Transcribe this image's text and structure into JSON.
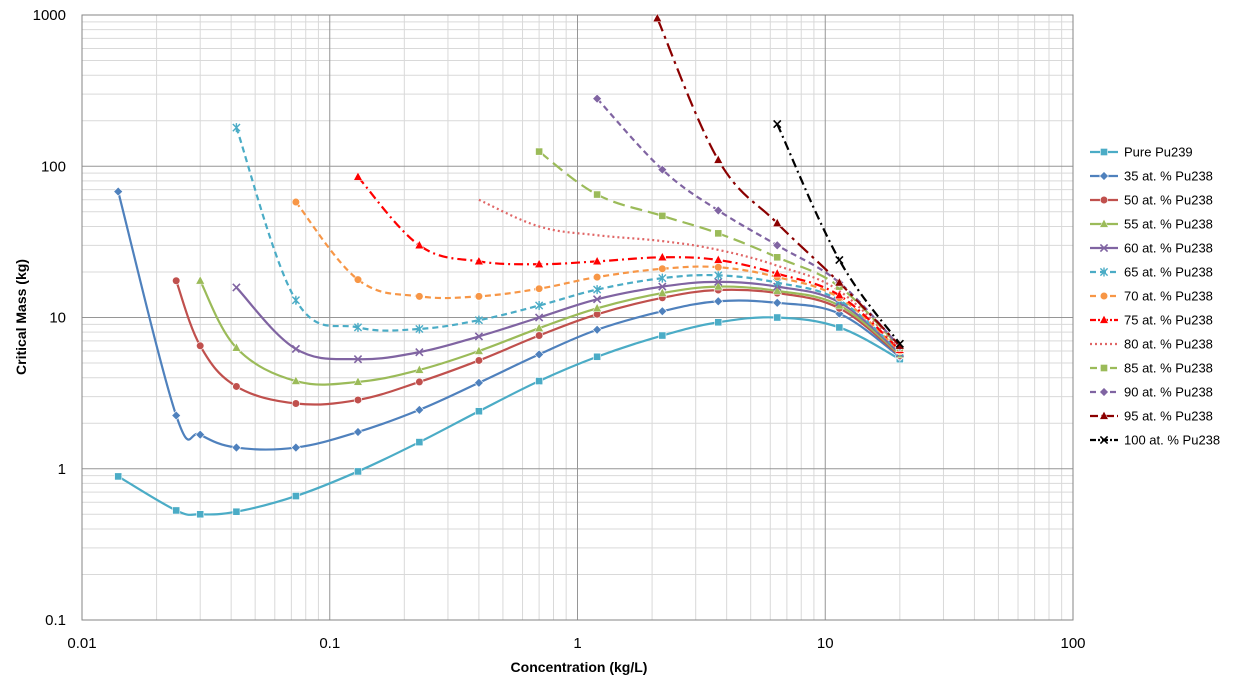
{
  "chart_data": {
    "type": "line",
    "xlabel": "Concentration (kg/L)",
    "ylabel": "Critical Mass (kg)",
    "xscale": "log",
    "yscale": "log",
    "xlim": [
      0.01,
      100
    ],
    "ylim": [
      0.1,
      1000
    ],
    "x_ticks": [
      "0.01",
      "0.1",
      "1",
      "10",
      "100"
    ],
    "y_ticks": [
      "0.1",
      "1",
      "10",
      "100",
      "1000"
    ],
    "grid": true,
    "legend_position": "right",
    "series": [
      {
        "name": "Pure Pu239",
        "color": "#4bacc6",
        "dash": "solid",
        "marker": "square",
        "x": [
          0.014,
          0.024,
          0.03,
          0.042,
          0.073,
          0.13,
          0.23,
          0.4,
          0.7,
          1.2,
          2.2,
          3.7,
          6.4,
          11.4,
          20
        ],
        "y": [
          0.89,
          0.53,
          0.5,
          0.52,
          0.66,
          0.96,
          1.5,
          2.4,
          3.8,
          5.5,
          7.6,
          9.3,
          10.0,
          8.6,
          5.3
        ]
      },
      {
        "name": "35 at. % Pu238",
        "color": "#4f81bd",
        "dash": "solid",
        "marker": "diamond",
        "x": [
          0.014,
          0.024,
          0.03,
          0.042,
          0.073,
          0.13,
          0.23,
          0.4,
          0.7,
          1.2,
          2.2,
          3.7,
          6.4,
          11.4,
          20
        ],
        "y": [
          68,
          2.25,
          1.68,
          1.38,
          1.38,
          1.75,
          2.45,
          3.7,
          5.7,
          8.3,
          11.0,
          12.8,
          12.5,
          10.6,
          5.5
        ]
      },
      {
        "name": "50 at. % Pu238",
        "color": "#c0504d",
        "dash": "solid",
        "marker": "circle",
        "x": [
          0.024,
          0.03,
          0.042,
          0.073,
          0.13,
          0.23,
          0.4,
          0.7,
          1.2,
          2.2,
          3.7,
          6.4,
          11.4,
          20
        ],
        "y": [
          17.5,
          6.5,
          3.5,
          2.7,
          2.85,
          3.75,
          5.2,
          7.6,
          10.5,
          13.5,
          15.2,
          14.5,
          11.5,
          5.6
        ]
      },
      {
        "name": "55 at. % Pu238",
        "color": "#9bbb59",
        "dash": "solid",
        "marker": "triangle",
        "x": [
          0.03,
          0.042,
          0.073,
          0.13,
          0.23,
          0.4,
          0.7,
          1.2,
          2.2,
          3.7,
          6.4,
          11.4,
          20
        ],
        "y": [
          17.5,
          6.3,
          3.8,
          3.75,
          4.5,
          6.0,
          8.5,
          11.5,
          14.5,
          16.0,
          15.0,
          12.0,
          5.7
        ]
      },
      {
        "name": "60 at. % Pu238",
        "color": "#8064a2",
        "dash": "solid",
        "marker": "x",
        "x": [
          0.042,
          0.073,
          0.13,
          0.23,
          0.4,
          0.7,
          1.2,
          2.2,
          3.7,
          6.4,
          11.4,
          20
        ],
        "y": [
          15.8,
          6.2,
          5.3,
          5.9,
          7.5,
          10.0,
          13.2,
          16.0,
          17.2,
          16.0,
          12.6,
          5.8
        ]
      },
      {
        "name": "65 at. % Pu238",
        "color": "#4bacc6",
        "dash": "dash",
        "marker": "star",
        "x": [
          0.042,
          0.073,
          0.13,
          0.23,
          0.4,
          0.7,
          1.2,
          2.2,
          3.7,
          6.4,
          11.4,
          20
        ],
        "y": [
          180,
          13.0,
          8.6,
          8.4,
          9.6,
          12.0,
          15.3,
          18.2,
          19.0,
          17.0,
          13.0,
          5.9
        ]
      },
      {
        "name": "70 at. % Pu238",
        "color": "#f79646",
        "dash": "dash",
        "marker": "circle",
        "x": [
          0.073,
          0.13,
          0.23,
          0.4,
          0.7,
          1.2,
          2.2,
          3.7,
          6.4,
          11.4,
          20
        ],
        "y": [
          58,
          17.8,
          13.8,
          13.8,
          15.5,
          18.5,
          21.0,
          21.5,
          18.5,
          13.5,
          6.0
        ]
      },
      {
        "name": "75 at. % Pu238",
        "color": "#ff0000",
        "dash": "dashdot",
        "marker": "triangle",
        "x": [
          0.13,
          0.23,
          0.4,
          0.7,
          1.2,
          2.2,
          3.7,
          6.4,
          11.4,
          20
        ],
        "y": [
          85,
          30,
          23.5,
          22.5,
          23.5,
          25.0,
          24.0,
          19.5,
          14.0,
          6.1
        ]
      },
      {
        "name": "80 at. % Pu238",
        "color": "#e06666",
        "dash": "dot",
        "marker": "none",
        "x": [
          0.4,
          0.7,
          1.2,
          2.2,
          3.7,
          6.4,
          11.4,
          20
        ],
        "y": [
          60,
          40,
          35,
          32,
          28,
          22,
          15,
          6.2
        ]
      },
      {
        "name": "85 at. % Pu238",
        "color": "#9bbb59",
        "dash": "longdash",
        "marker": "square",
        "x": [
          0.7,
          1.2,
          2.2,
          3.7,
          6.4,
          11.4,
          20
        ],
        "y": [
          125,
          65,
          47,
          36,
          25,
          16,
          6.3
        ]
      },
      {
        "name": "90 at. % Pu238",
        "color": "#8064a2",
        "dash": "dash",
        "marker": "diamond",
        "x": [
          1.2,
          2.2,
          3.7,
          6.4,
          11.4,
          20
        ],
        "y": [
          280,
          95,
          51,
          30,
          17,
          6.4
        ]
      },
      {
        "name": "95 at. % Pu238",
        "color": "#8b0000",
        "dash": "longdashdot",
        "marker": "triangle",
        "x": [
          2.1,
          3.7,
          6.4,
          11.4,
          20
        ],
        "y": [
          950,
          110,
          42,
          17,
          6.5
        ]
      },
      {
        "name": "100 at. % Pu238",
        "color": "#000000",
        "dash": "dashdot",
        "marker": "x",
        "x": [
          6.4,
          11.4,
          20
        ],
        "y": [
          190,
          24,
          6.7
        ]
      }
    ]
  }
}
